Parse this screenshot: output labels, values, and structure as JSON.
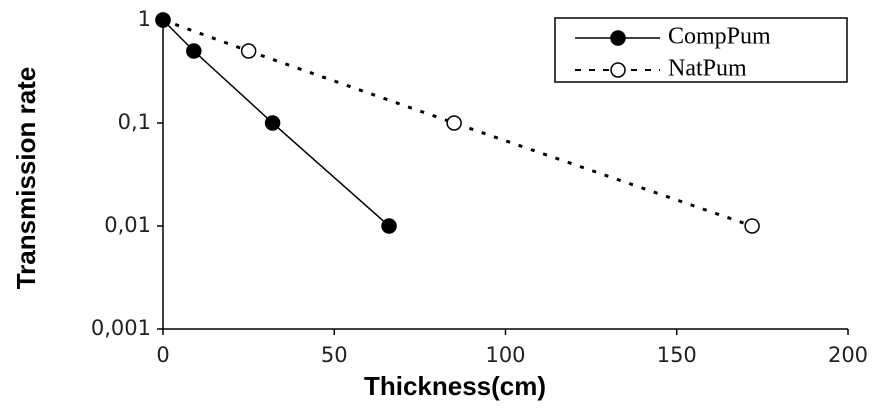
{
  "chart_data": {
    "type": "line",
    "xlabel": "Thickness(cm)",
    "ylabel": "Transmission rate",
    "xlim": [
      0,
      200
    ],
    "xticks": [
      0,
      50,
      100,
      150,
      200
    ],
    "ylim": [
      0.001,
      1
    ],
    "yscale": "log",
    "yticks": [
      {
        "value": 0.001,
        "label": "0,001"
      },
      {
        "value": 0.01,
        "label": "0,01"
      },
      {
        "value": 0.1,
        "label": "0,1"
      },
      1
    ],
    "legend": "upper right",
    "series": [
      {
        "name": "NatPum",
        "color": "#000000",
        "line_style": "dashed",
        "marker": "open",
        "x": [
          0,
          25,
          85,
          172
        ],
        "values": [
          1,
          0.5,
          0.1,
          0.01
        ]
      },
      {
        "name": "CompPum",
        "color": "#000000",
        "line_style": "solid",
        "marker": "filled",
        "x": [
          0,
          9,
          32,
          66
        ],
        "values": [
          1,
          0.5,
          0.1,
          0.01
        ]
      }
    ]
  }
}
